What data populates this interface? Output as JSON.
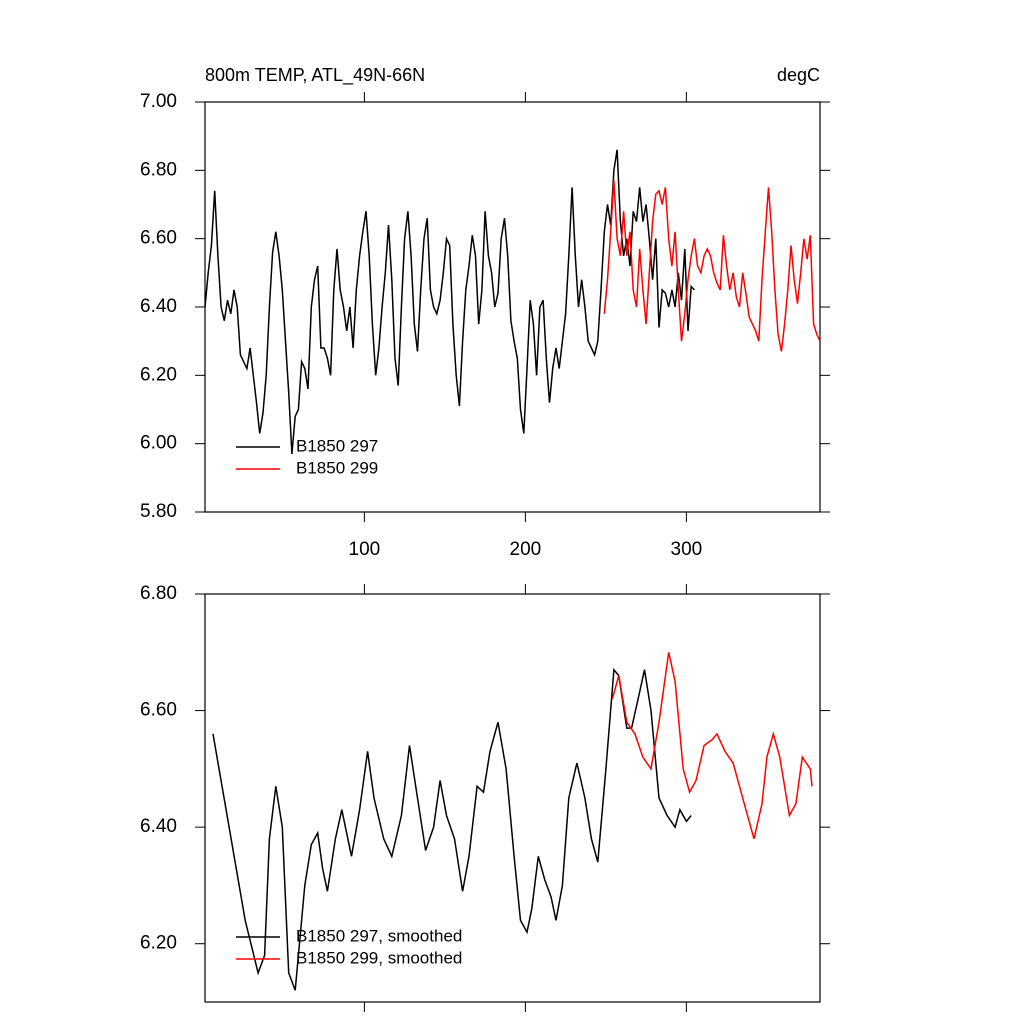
{
  "chart_data": [
    {
      "type": "line",
      "title": "800m TEMP, ATL_49N-66N",
      "units": "degC",
      "xlim": [
        1,
        383
      ],
      "ylim": [
        5.8,
        7.0
      ],
      "xticks": [
        100,
        200,
        300
      ],
      "xtick_labels": true,
      "yticks": [
        {
          "value": 5.8,
          "label": "5.80"
        },
        {
          "value": 6.0,
          "label": "6.00"
        },
        {
          "value": 6.2,
          "label": "6.20"
        },
        {
          "value": 6.4,
          "label": "6.40"
        },
        {
          "value": 6.6,
          "label": "6.60"
        },
        {
          "value": 6.8,
          "label": "6.80"
        },
        {
          "value": 7.0,
          "label": "7.00"
        }
      ],
      "legend": "lower left",
      "series": [
        {
          "name": "B1850 297",
          "color": "#000000",
          "x": [
            1,
            3,
            5,
            7,
            9,
            11,
            13,
            15,
            17,
            19,
            21,
            23,
            25,
            27,
            29,
            31,
            33,
            35,
            37,
            39,
            41,
            43,
            45,
            47,
            49,
            51,
            53,
            55,
            57,
            59,
            61,
            63,
            65,
            67,
            69,
            71,
            73,
            75,
            77,
            79,
            81,
            83,
            85,
            87,
            89,
            91,
            93,
            95,
            97,
            99,
            101,
            103,
            105,
            107,
            109,
            111,
            113,
            115,
            117,
            119,
            121,
            123,
            125,
            127,
            129,
            131,
            133,
            135,
            137,
            139,
            141,
            143,
            145,
            147,
            149,
            151,
            153,
            155,
            157,
            159,
            161,
            163,
            165,
            167,
            169,
            171,
            173,
            175,
            177,
            179,
            181,
            183,
            185,
            187,
            189,
            191,
            193,
            195,
            197,
            199,
            201,
            203,
            205,
            207,
            209,
            211,
            213,
            215,
            217,
            219,
            221,
            223,
            225,
            227,
            229,
            231,
            233,
            235,
            237,
            239,
            241,
            243,
            245,
            247,
            249,
            251,
            253,
            255,
            257,
            259,
            261,
            263,
            265,
            267,
            269,
            271,
            273,
            275,
            277,
            279,
            281,
            283,
            285,
            287,
            289,
            291,
            293,
            295,
            297,
            299,
            301,
            303,
            305
          ],
          "values": [
            6.4,
            6.5,
            6.58,
            6.74,
            6.55,
            6.4,
            6.36,
            6.42,
            6.38,
            6.45,
            6.4,
            6.26,
            6.24,
            6.22,
            6.28,
            6.2,
            6.12,
            6.03,
            6.09,
            6.2,
            6.4,
            6.56,
            6.62,
            6.55,
            6.45,
            6.3,
            6.15,
            5.97,
            6.08,
            6.1,
            6.24,
            6.22,
            6.16,
            6.4,
            6.48,
            6.52,
            6.28,
            6.28,
            6.25,
            6.2,
            6.45,
            6.57,
            6.45,
            6.4,
            6.33,
            6.4,
            6.28,
            6.45,
            6.55,
            6.62,
            6.68,
            6.55,
            6.35,
            6.2,
            6.28,
            6.4,
            6.5,
            6.64,
            6.48,
            6.25,
            6.17,
            6.4,
            6.6,
            6.68,
            6.55,
            6.35,
            6.27,
            6.45,
            6.6,
            6.66,
            6.45,
            6.4,
            6.38,
            6.42,
            6.5,
            6.6,
            6.58,
            6.35,
            6.2,
            6.11,
            6.3,
            6.45,
            6.52,
            6.61,
            6.55,
            6.35,
            6.45,
            6.68,
            6.55,
            6.5,
            6.4,
            6.44,
            6.6,
            6.66,
            6.55,
            6.36,
            6.3,
            6.25,
            6.1,
            6.03,
            6.22,
            6.42,
            6.35,
            6.2,
            6.4,
            6.42,
            6.25,
            6.12,
            6.22,
            6.28,
            6.22,
            6.3,
            6.38,
            6.55,
            6.75,
            6.55,
            6.4,
            6.48,
            6.4,
            6.3,
            6.28,
            6.26,
            6.3,
            6.45,
            6.62,
            6.7,
            6.64,
            6.8,
            6.86,
            6.65,
            6.55,
            6.6,
            6.52,
            6.68,
            6.65,
            6.75,
            6.65,
            6.7,
            6.6,
            6.48,
            6.6,
            6.34,
            6.45,
            6.44,
            6.4,
            6.45,
            6.4,
            6.5,
            6.42,
            6.57,
            6.33,
            6.46,
            6.45
          ]
        },
        {
          "name": "B1850 299",
          "color": "#ff0000",
          "x": [
            249,
            251,
            253,
            255,
            257,
            259,
            261,
            263,
            265,
            267,
            269,
            271,
            273,
            275,
            277,
            279,
            281,
            283,
            285,
            287,
            289,
            291,
            293,
            295,
            297,
            299,
            301,
            303,
            305,
            307,
            309,
            311,
            313,
            315,
            317,
            319,
            321,
            323,
            325,
            327,
            329,
            331,
            333,
            335,
            337,
            339,
            341,
            343,
            345,
            347,
            349,
            351,
            353,
            355,
            357,
            359,
            361,
            363,
            365,
            367,
            369,
            371,
            373,
            375,
            377,
            379,
            381,
            383
          ],
          "values": [
            6.38,
            6.48,
            6.62,
            6.77,
            6.6,
            6.55,
            6.68,
            6.55,
            6.62,
            6.45,
            6.4,
            6.57,
            6.45,
            6.35,
            6.5,
            6.65,
            6.73,
            6.74,
            6.7,
            6.75,
            6.6,
            6.52,
            6.62,
            6.45,
            6.3,
            6.38,
            6.48,
            6.55,
            6.6,
            6.52,
            6.5,
            6.55,
            6.57,
            6.55,
            6.5,
            6.47,
            6.45,
            6.61,
            6.52,
            6.45,
            6.5,
            6.43,
            6.4,
            6.5,
            6.44,
            6.37,
            6.35,
            6.33,
            6.3,
            6.48,
            6.62,
            6.75,
            6.62,
            6.45,
            6.32,
            6.27,
            6.35,
            6.45,
            6.58,
            6.48,
            6.41,
            6.5,
            6.6,
            6.54,
            6.61,
            6.35,
            6.32,
            6.3
          ]
        }
      ]
    },
    {
      "type": "line",
      "xlim": [
        1,
        383
      ],
      "ylim": [
        6.1,
        6.8
      ],
      "xticks": [
        100,
        200,
        300
      ],
      "xtick_labels": false,
      "yticks": [
        {
          "value": 6.2,
          "label": "6.20"
        },
        {
          "value": 6.4,
          "label": "6.40"
        },
        {
          "value": 6.6,
          "label": "6.60"
        },
        {
          "value": 6.8,
          "label": "6.80"
        }
      ],
      "legend": "lower left",
      "series": [
        {
          "name": "B1850 297, smoothed",
          "color": "#000000",
          "x": [
            6,
            16,
            26,
            34,
            38,
            41,
            45,
            49,
            53,
            57,
            63,
            67,
            71,
            74,
            77,
            82,
            86,
            92,
            97,
            102,
            106,
            112,
            117,
            123,
            128,
            133,
            138,
            143,
            147,
            151,
            156,
            161,
            165,
            170,
            174,
            178,
            183,
            188,
            193,
            197,
            201,
            204,
            208,
            212,
            216,
            219,
            223,
            227,
            232,
            237,
            241,
            245,
            250,
            255,
            258,
            263,
            266,
            270,
            274,
            278,
            283,
            288,
            293,
            296,
            300,
            303
          ],
          "values": [
            6.56,
            6.4,
            6.24,
            6.15,
            6.18,
            6.38,
            6.47,
            6.4,
            6.15,
            6.12,
            6.3,
            6.37,
            6.39,
            6.33,
            6.29,
            6.38,
            6.43,
            6.35,
            6.43,
            6.53,
            6.45,
            6.38,
            6.35,
            6.42,
            6.54,
            6.45,
            6.36,
            6.4,
            6.48,
            6.42,
            6.38,
            6.29,
            6.35,
            6.47,
            6.46,
            6.53,
            6.58,
            6.5,
            6.35,
            6.24,
            6.22,
            6.26,
            6.35,
            6.31,
            6.28,
            6.24,
            6.3,
            6.45,
            6.51,
            6.45,
            6.38,
            6.34,
            6.5,
            6.67,
            6.66,
            6.57,
            6.57,
            6.62,
            6.67,
            6.6,
            6.45,
            6.42,
            6.4,
            6.43,
            6.41,
            6.42
          ]
        },
        {
          "name": "B1850 299, smoothed",
          "color": "#ff0000",
          "x": [
            254,
            258,
            263,
            268,
            273,
            278,
            283,
            289,
            293,
            298,
            302,
            306,
            311,
            316,
            319,
            324,
            329,
            333,
            337,
            342,
            347,
            350,
            354,
            358,
            364,
            368,
            372,
            377,
            378
          ],
          "values": [
            6.62,
            6.66,
            6.58,
            6.56,
            6.52,
            6.5,
            6.58,
            6.7,
            6.65,
            6.5,
            6.46,
            6.48,
            6.54,
            6.55,
            6.56,
            6.53,
            6.51,
            6.47,
            6.43,
            6.38,
            6.44,
            6.52,
            6.56,
            6.52,
            6.42,
            6.44,
            6.52,
            6.5,
            6.47
          ]
        }
      ]
    }
  ]
}
